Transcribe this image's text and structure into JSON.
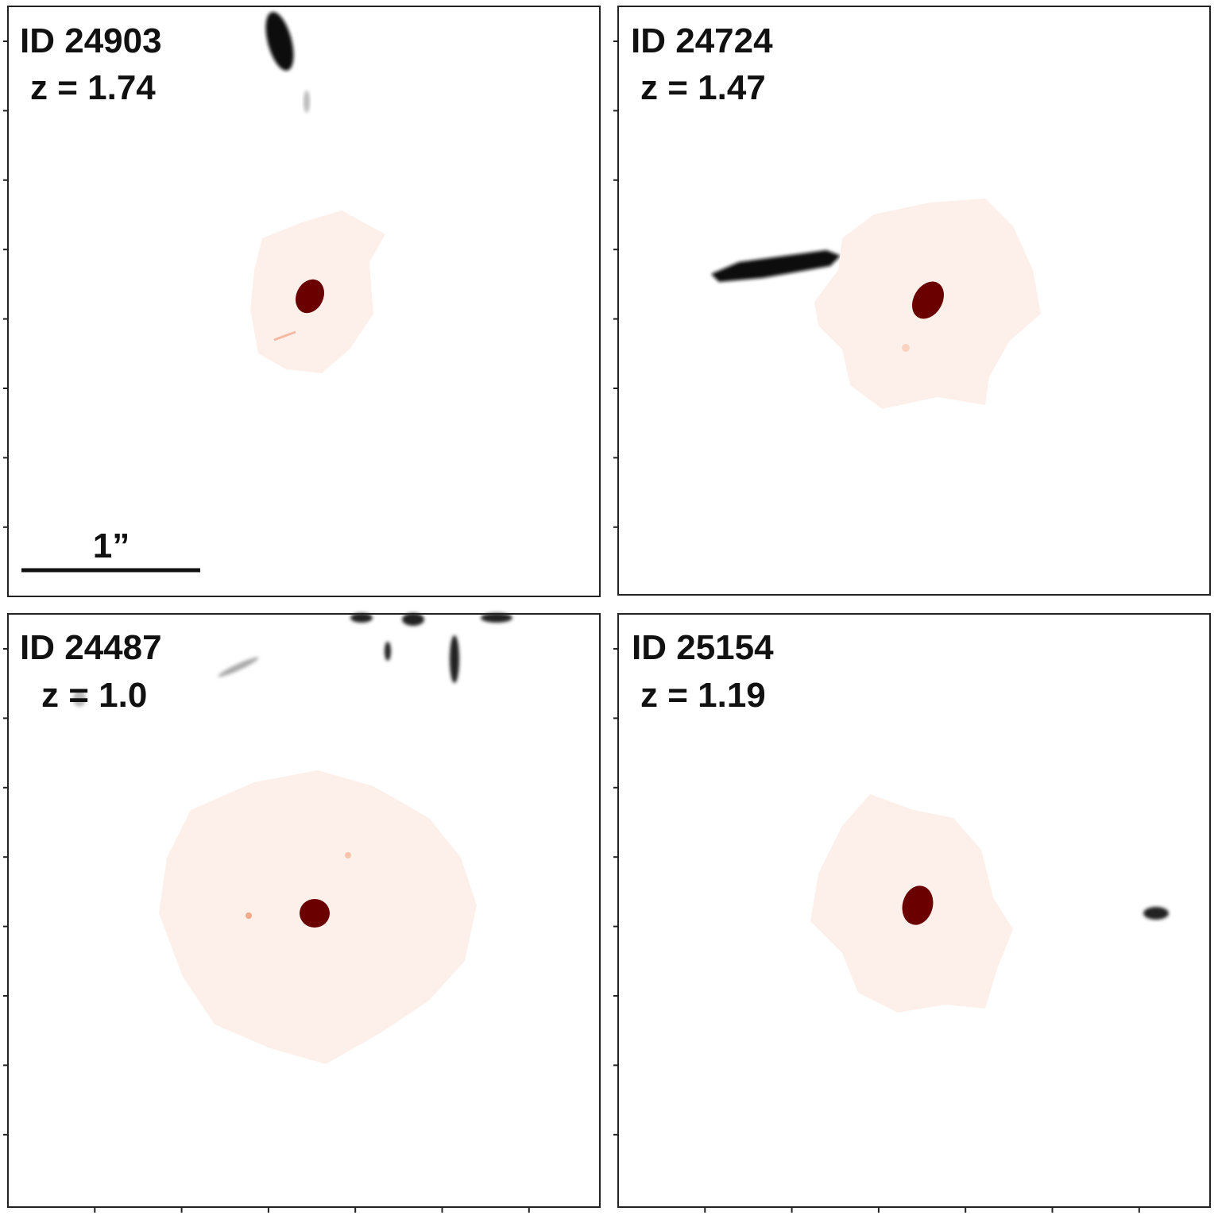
{
  "panels": [
    {
      "id": "ID 24903",
      "z": "z = 1.74"
    },
    {
      "id": "ID 24724",
      "z": "z = 1.47"
    },
    {
      "id": "ID 24487",
      "z": "z = 1.0"
    },
    {
      "id": "ID 25154",
      "z": "z = 1.19"
    }
  ],
  "scale_bar": {
    "label": "1”"
  }
}
